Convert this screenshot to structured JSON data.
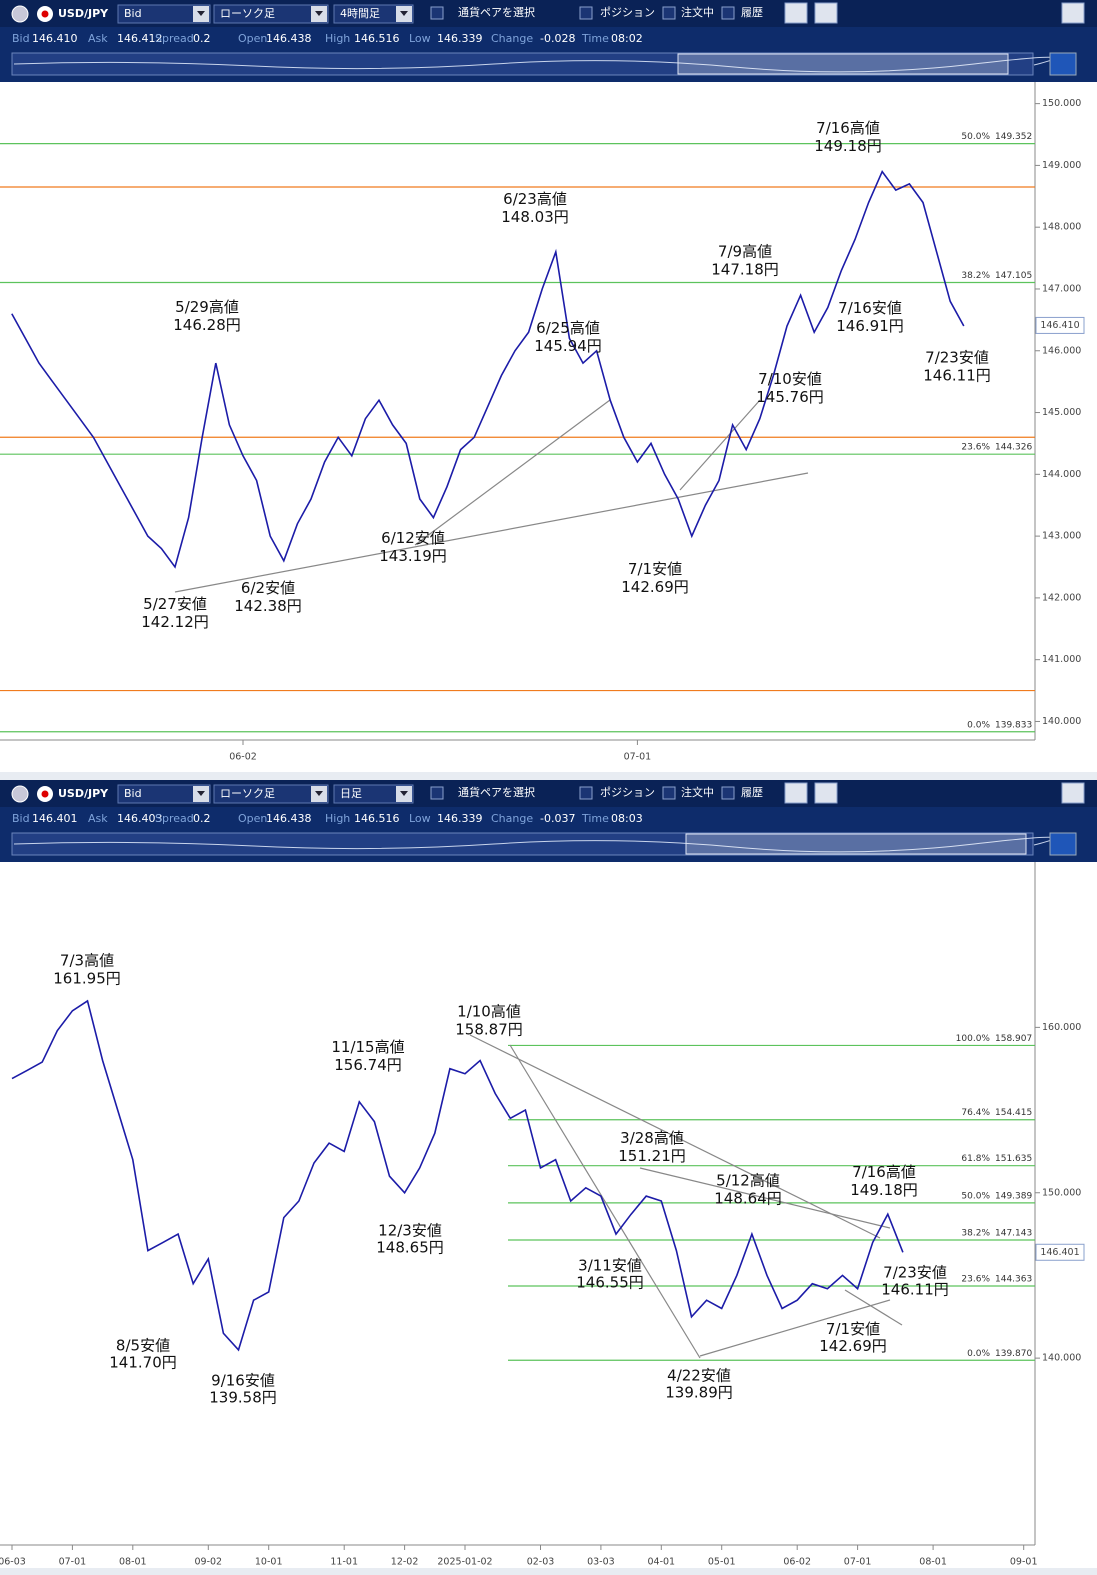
{
  "panels": [
    {
      "toolbar": {
        "pair": "USD/JPY",
        "price_type": "Bid",
        "chart_type": "ローソク足",
        "timeframe": "4時間足",
        "select": "通貨ペアを選択",
        "position": "ポジション",
        "orders": "注文中",
        "history": "履歴"
      },
      "quote": [
        {
          "label": "Bid",
          "value": "146.410"
        },
        {
          "label": "Ask",
          "value": "146.412"
        },
        {
          "label": "Spread",
          "value": "0.2"
        },
        {
          "label": "Open",
          "value": "146.438"
        },
        {
          "label": "High",
          "value": "146.516"
        },
        {
          "label": "Low",
          "value": "146.339"
        },
        {
          "label": "Change",
          "value": "-0.028"
        },
        {
          "label": "Time",
          "value": "08:02"
        }
      ]
    },
    {
      "toolbar": {
        "pair": "USD/JPY",
        "price_type": "Bid",
        "chart_type": "ローソク足",
        "timeframe": "日足",
        "select": "通貨ペアを選択",
        "position": "ポジション",
        "orders": "注文中",
        "history": "履歴"
      },
      "quote": [
        {
          "label": "Bid",
          "value": "146.401"
        },
        {
          "label": "Ask",
          "value": "146.403"
        },
        {
          "label": "Spread",
          "value": "0.2"
        },
        {
          "label": "Open",
          "value": "146.438"
        },
        {
          "label": "High",
          "value": "146.516"
        },
        {
          "label": "Low",
          "value": "146.339"
        },
        {
          "label": "Change",
          "value": "-0.037"
        },
        {
          "label": "Time",
          "value": "08:03"
        }
      ]
    }
  ],
  "chart_data": [
    {
      "type": "line",
      "categories": [
        null,
        null,
        null,
        null,
        null,
        null,
        null,
        null,
        null,
        null,
        null,
        null,
        null,
        null,
        null,
        null,
        null,
        "06-02",
        null,
        null,
        null,
        null,
        null,
        null,
        null,
        null,
        null,
        null,
        null,
        null,
        null,
        null,
        null,
        null,
        null,
        null,
        null,
        null,
        null,
        null,
        null,
        null,
        null,
        null,
        null,
        null,
        "07-01",
        null,
        null,
        null,
        null,
        null,
        null,
        null,
        null,
        null,
        null,
        null,
        null,
        null,
        null,
        null,
        null,
        null,
        null,
        null,
        null,
        null,
        null,
        null,
        null
      ],
      "series": [
        {
          "name": "USD/JPY",
          "color": "#1c1ca8",
          "values": [
            146.6,
            146.2,
            145.8,
            145.5,
            145.2,
            144.9,
            144.6,
            144.2,
            143.8,
            143.4,
            143.0,
            142.8,
            142.5,
            143.3,
            144.6,
            145.8,
            144.8,
            144.3,
            143.9,
            143.0,
            142.6,
            143.2,
            143.6,
            144.2,
            144.6,
            144.3,
            144.9,
            145.2,
            144.8,
            144.5,
            143.6,
            143.3,
            143.8,
            144.4,
            144.6,
            145.1,
            145.6,
            146.0,
            146.3,
            147.0,
            147.6,
            146.2,
            145.8,
            146.0,
            145.2,
            144.6,
            144.2,
            144.5,
            144.0,
            143.6,
            143.0,
            143.5,
            143.9,
            144.8,
            144.4,
            144.9,
            145.6,
            146.4,
            146.9,
            146.3,
            146.7,
            147.3,
            147.8,
            148.4,
            148.9,
            148.6,
            148.7,
            148.4,
            147.6,
            146.8,
            146.4
          ]
        }
      ],
      "ylim": [
        139.7,
        150.35
      ],
      "yticks": [
        {
          "value": 140,
          "label": "140.000"
        },
        {
          "value": 141,
          "label": "141.000"
        },
        {
          "value": 142,
          "label": "142.000"
        },
        {
          "value": 143,
          "label": "143.000"
        },
        {
          "value": 144,
          "label": "144.000"
        },
        {
          "value": 145,
          "label": "145.000"
        },
        {
          "value": 146,
          "label": "146.000"
        },
        {
          "value": 147,
          "label": "147.000"
        },
        {
          "value": 148,
          "label": "148.000"
        },
        {
          "value": 149,
          "label": "149.000"
        },
        {
          "value": 150,
          "label": "150.000"
        }
      ],
      "fib_levels": [
        {
          "label": "50.0%",
          "value": 149.352
        },
        {
          "label": "38.2%",
          "value": 147.105
        },
        {
          "label": "23.6%",
          "value": 144.326
        },
        {
          "label": "0.0%",
          "value": 139.833
        }
      ],
      "fib_color": "#5cc35c",
      "lines": [
        {
          "value": 148.65,
          "color": "#f07b1e"
        },
        {
          "value": 144.6,
          "color": "#f07b1e"
        },
        {
          "value": 140.5,
          "color": "#f07b1e"
        }
      ],
      "current_price": {
        "value": 146.41,
        "label": "146.410"
      },
      "annotations": [
        {
          "label": "5/29高値",
          "value": 146.28,
          "value_label": "146.28円"
        },
        {
          "label": "5/27安値",
          "value": 142.12,
          "value_label": "142.12円"
        },
        {
          "label": "6/2安値",
          "value": 142.38,
          "value_label": "142.38円"
        },
        {
          "label": "6/12安値",
          "value": 143.19,
          "value_label": "143.19円"
        },
        {
          "label": "6/23高値",
          "value": 148.03,
          "value_label": "148.03円"
        },
        {
          "label": "6/25高値",
          "value": 145.94,
          "value_label": "145.94円"
        },
        {
          "label": "7/1安値",
          "value": 142.69,
          "value_label": "142.69円"
        },
        {
          "label": "7/9高値",
          "value": 147.18,
          "value_label": "147.18円"
        },
        {
          "label": "7/10安値",
          "value": 145.76,
          "value_label": "145.76円"
        },
        {
          "label": "7/16高値",
          "value": 149.18,
          "value_label": "149.18円"
        },
        {
          "label": "7/16安値",
          "value": 146.91,
          "value_label": "146.91円"
        },
        {
          "label": "7/23安値",
          "value": 146.11,
          "value_label": "146.11円"
        }
      ]
    },
    {
      "type": "line",
      "categories": [
        "06-03",
        null,
        null,
        null,
        "07-01",
        null,
        null,
        null,
        "08-01",
        null,
        null,
        null,
        null,
        "09-02",
        null,
        null,
        null,
        "10-01",
        null,
        null,
        null,
        null,
        "11-01",
        null,
        null,
        null,
        "12-02",
        null,
        null,
        null,
        "2025-01-02",
        null,
        null,
        null,
        null,
        "02-03",
        null,
        null,
        null,
        "03-03",
        null,
        null,
        null,
        "04-01",
        null,
        null,
        null,
        "05-01",
        null,
        null,
        null,
        null,
        "06-02",
        null,
        null,
        null,
        "07-01",
        null,
        null,
        null,
        null,
        "08-01",
        null,
        null,
        null,
        null,
        null,
        "09-01"
      ],
      "series": [
        {
          "name": "USD/JPY",
          "color": "#1c1ca8",
          "values": [
            156.9,
            157.4,
            157.9,
            159.8,
            161.0,
            161.6,
            158.0,
            155.0,
            152.0,
            146.5,
            147.0,
            147.5,
            144.5,
            146.0,
            141.5,
            140.5,
            143.5,
            144.0,
            148.5,
            149.5,
            151.8,
            153.0,
            152.5,
            155.5,
            154.3,
            151.0,
            150.0,
            151.5,
            153.6,
            157.5,
            157.2,
            158.0,
            156.0,
            154.5,
            155.0,
            151.5,
            152.0,
            149.5,
            150.3,
            149.8,
            147.5,
            148.7,
            149.8,
            149.5,
            146.5,
            142.5,
            143.5,
            143.0,
            145.0,
            147.5,
            145.0,
            143.0,
            143.5,
            144.5,
            144.2,
            145.0,
            144.2,
            147.0,
            148.7,
            146.4,
            null,
            null,
            null,
            null,
            null,
            null,
            null,
            null
          ]
        }
      ],
      "ylim": [
        128.7,
        170
      ],
      "yticks": [
        {
          "value": 140,
          "label": "140.000"
        },
        {
          "value": 150,
          "label": "150.000"
        },
        {
          "value": 160,
          "label": "160.000"
        }
      ],
      "fib_levels": [
        {
          "label": "100.0%",
          "value": 158.907
        },
        {
          "label": "76.4%",
          "value": 154.415
        },
        {
          "label": "61.8%",
          "value": 151.635
        },
        {
          "label": "50.0%",
          "value": 149.389
        },
        {
          "label": "38.2%",
          "value": 147.143
        },
        {
          "label": "23.6%",
          "value": 144.363
        },
        {
          "label": "0.0%",
          "value": 139.87,
          "value_label": "139.870"
        }
      ],
      "fib_color": "#5cc35c",
      "current_price": {
        "value": 146.401,
        "label": "146.401"
      },
      "annotations": [
        {
          "label": "7/3高値",
          "value": 161.95,
          "value_label": "161.95円"
        },
        {
          "label": "8/5安値",
          "value": 141.7,
          "value_label": "141.70円"
        },
        {
          "label": "9/16安値",
          "value": 139.58,
          "value_label": "139.58円"
        },
        {
          "label": "11/15高値",
          "value": 156.74,
          "value_label": "156.74円"
        },
        {
          "label": "12/3安値",
          "value": 148.65,
          "value_label": "148.65円"
        },
        {
          "label": "1/10高値",
          "value": 158.87,
          "value_label": "158.87円"
        },
        {
          "label": "3/28高値",
          "value": 151.21,
          "value_label": "151.21円"
        },
        {
          "label": "3/11安値",
          "value": 146.55,
          "value_label": "146.55円"
        },
        {
          "label": "4/22安値",
          "value": 139.89,
          "value_label": "139.89円"
        },
        {
          "label": "5/12高値",
          "value": 148.64,
          "value_label": "148.64円"
        },
        {
          "label": "7/16高値",
          "value": 149.18,
          "value_label": "149.18円"
        },
        {
          "label": "7/23安値",
          "value": 146.11,
          "value_label": "146.11円"
        },
        {
          "label": "7/1安値",
          "value": 142.69,
          "value_label": "142.69円"
        }
      ]
    }
  ]
}
